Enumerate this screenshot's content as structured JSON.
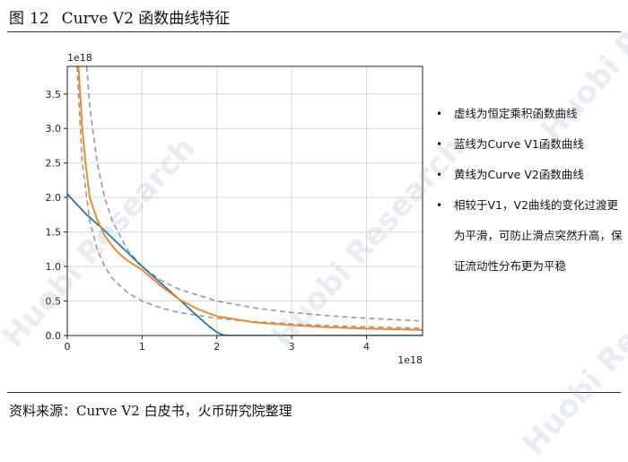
{
  "header": {
    "figure_label": "图",
    "figure_number": "12",
    "title": "Curve V2 函数曲线特征"
  },
  "footer": {
    "source": "资料来源：Curve V2 白皮书，火币研究院整理"
  },
  "watermark": {
    "text": "Huobi Research"
  },
  "notes": [
    "虚线为恒定乘积函数曲线",
    "蓝线为Curve V1函数曲线",
    "黄线为Curve V2函数曲线",
    "相较于V1，V2曲线的变化过渡更为平滑，可防止滑点突然升高，保证流动性分布更为平稳"
  ],
  "chart_data": {
    "type": "line",
    "title": "",
    "xlabel": "",
    "ylabel": "",
    "x_offset_label": "1e18",
    "y_offset_label": "1e18",
    "xlim": [
      0,
      4.75
    ],
    "ylim": [
      0,
      3.9
    ],
    "x_ticks": [
      0,
      1,
      2,
      3,
      4
    ],
    "y_ticks": [
      0.0,
      0.5,
      1.0,
      1.5,
      2.0,
      2.5,
      3.0,
      3.5
    ],
    "grid": true,
    "colors": {
      "v1": "#1f77b4",
      "v2": "#ff7f0e",
      "constant_product": "#999999"
    },
    "series": [
      {
        "style": "dashed",
        "x": [
          0.13,
          0.2,
          0.3,
          0.4,
          0.5,
          0.6,
          0.8,
          1.0,
          1.25,
          1.5,
          2.0,
          2.5,
          3.0,
          3.5,
          4.0,
          4.75
        ],
        "y": [
          3.9,
          2.5,
          1.667,
          1.25,
          1.0,
          0.833,
          0.625,
          0.5,
          0.4,
          0.333,
          0.25,
          0.2,
          0.167,
          0.143,
          0.125,
          0.105
        ]
      },
      {
        "style": "dashed",
        "x": [
          0.26,
          0.3,
          0.4,
          0.5,
          0.6,
          0.8,
          1.0,
          1.25,
          1.5,
          2.0,
          2.5,
          3.0,
          3.5,
          4.0,
          4.75
        ],
        "y": [
          3.9,
          3.333,
          2.5,
          2.0,
          1.667,
          1.25,
          1.0,
          0.8,
          0.667,
          0.5,
          0.4,
          0.333,
          0.286,
          0.25,
          0.211
        ]
      },
      {
        "style": "solid",
        "color_key": "v1",
        "x": [
          0.0,
          0.25,
          0.5,
          0.75,
          1.0,
          1.25,
          1.5,
          1.75,
          1.9,
          2.0,
          2.05,
          2.1,
          2.2,
          2.5,
          3.0,
          4.0,
          4.75
        ],
        "y": [
          2.05,
          1.76,
          1.52,
          1.26,
          1.0,
          0.76,
          0.52,
          0.27,
          0.13,
          0.05,
          0.02,
          0.005,
          0.0,
          0.0,
          0.0,
          0.0,
          0.0
        ]
      },
      {
        "style": "solid",
        "color_key": "v2",
        "x": [
          0.15,
          0.2,
          0.25,
          0.3,
          0.4,
          0.5,
          0.6,
          0.7,
          0.8,
          1.0,
          1.25,
          1.5,
          1.75,
          2.0,
          2.5,
          3.0,
          3.5,
          4.0,
          4.75
        ],
        "y": [
          3.9,
          3.0,
          2.45,
          2.0,
          1.68,
          1.45,
          1.3,
          1.18,
          1.09,
          0.95,
          0.72,
          0.52,
          0.38,
          0.28,
          0.19,
          0.15,
          0.12,
          0.1,
          0.08
        ]
      }
    ]
  }
}
